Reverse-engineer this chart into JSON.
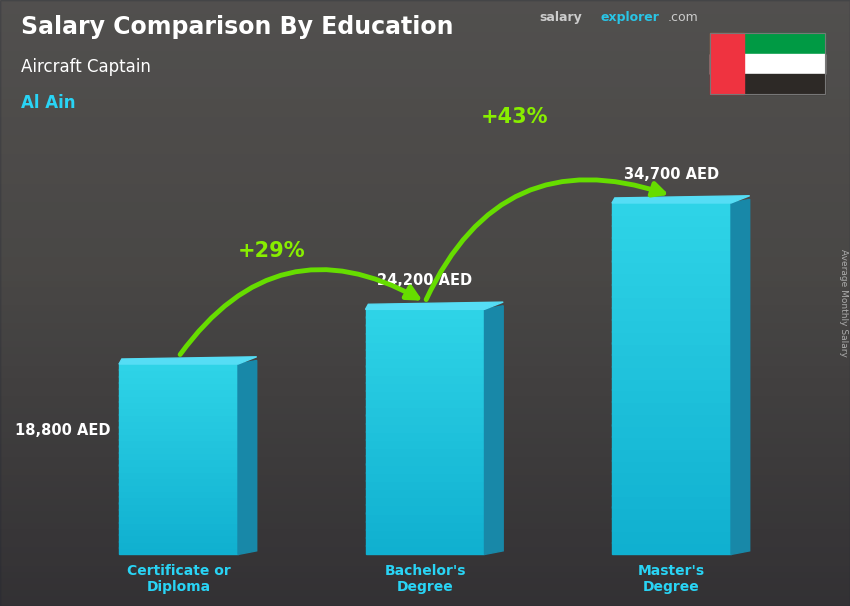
{
  "title": "Salary Comparison By Education",
  "subtitle": "Aircraft Captain",
  "location": "Al Ain",
  "categories": [
    "Certificate or\nDiploma",
    "Bachelor's\nDegree",
    "Master's\nDegree"
  ],
  "values": [
    18800,
    24200,
    34700
  ],
  "value_labels": [
    "18,800 AED",
    "24,200 AED",
    "34,700 AED"
  ],
  "pct_labels": [
    "+29%",
    "+43%"
  ],
  "bar_face_color": "#29c5e6",
  "bar_side_color": "#1a8faa",
  "bar_top_color": "#50d8f0",
  "arrow_color": "#66dd00",
  "title_color": "#ffffff",
  "subtitle_color": "#ffffff",
  "location_color": "#29d4f5",
  "value_label_color": "#ffffff",
  "pct_color": "#88ee00",
  "category_label_color": "#29d4f5",
  "bg_top_color": "#7a7060",
  "bg_bottom_color": "#3a3830",
  "salary_white": "#cccccc",
  "salary_cyan": "#29c5e6",
  "right_label": "Average Monthly Salary",
  "figsize": [
    8.5,
    6.06
  ],
  "dpi": 100
}
